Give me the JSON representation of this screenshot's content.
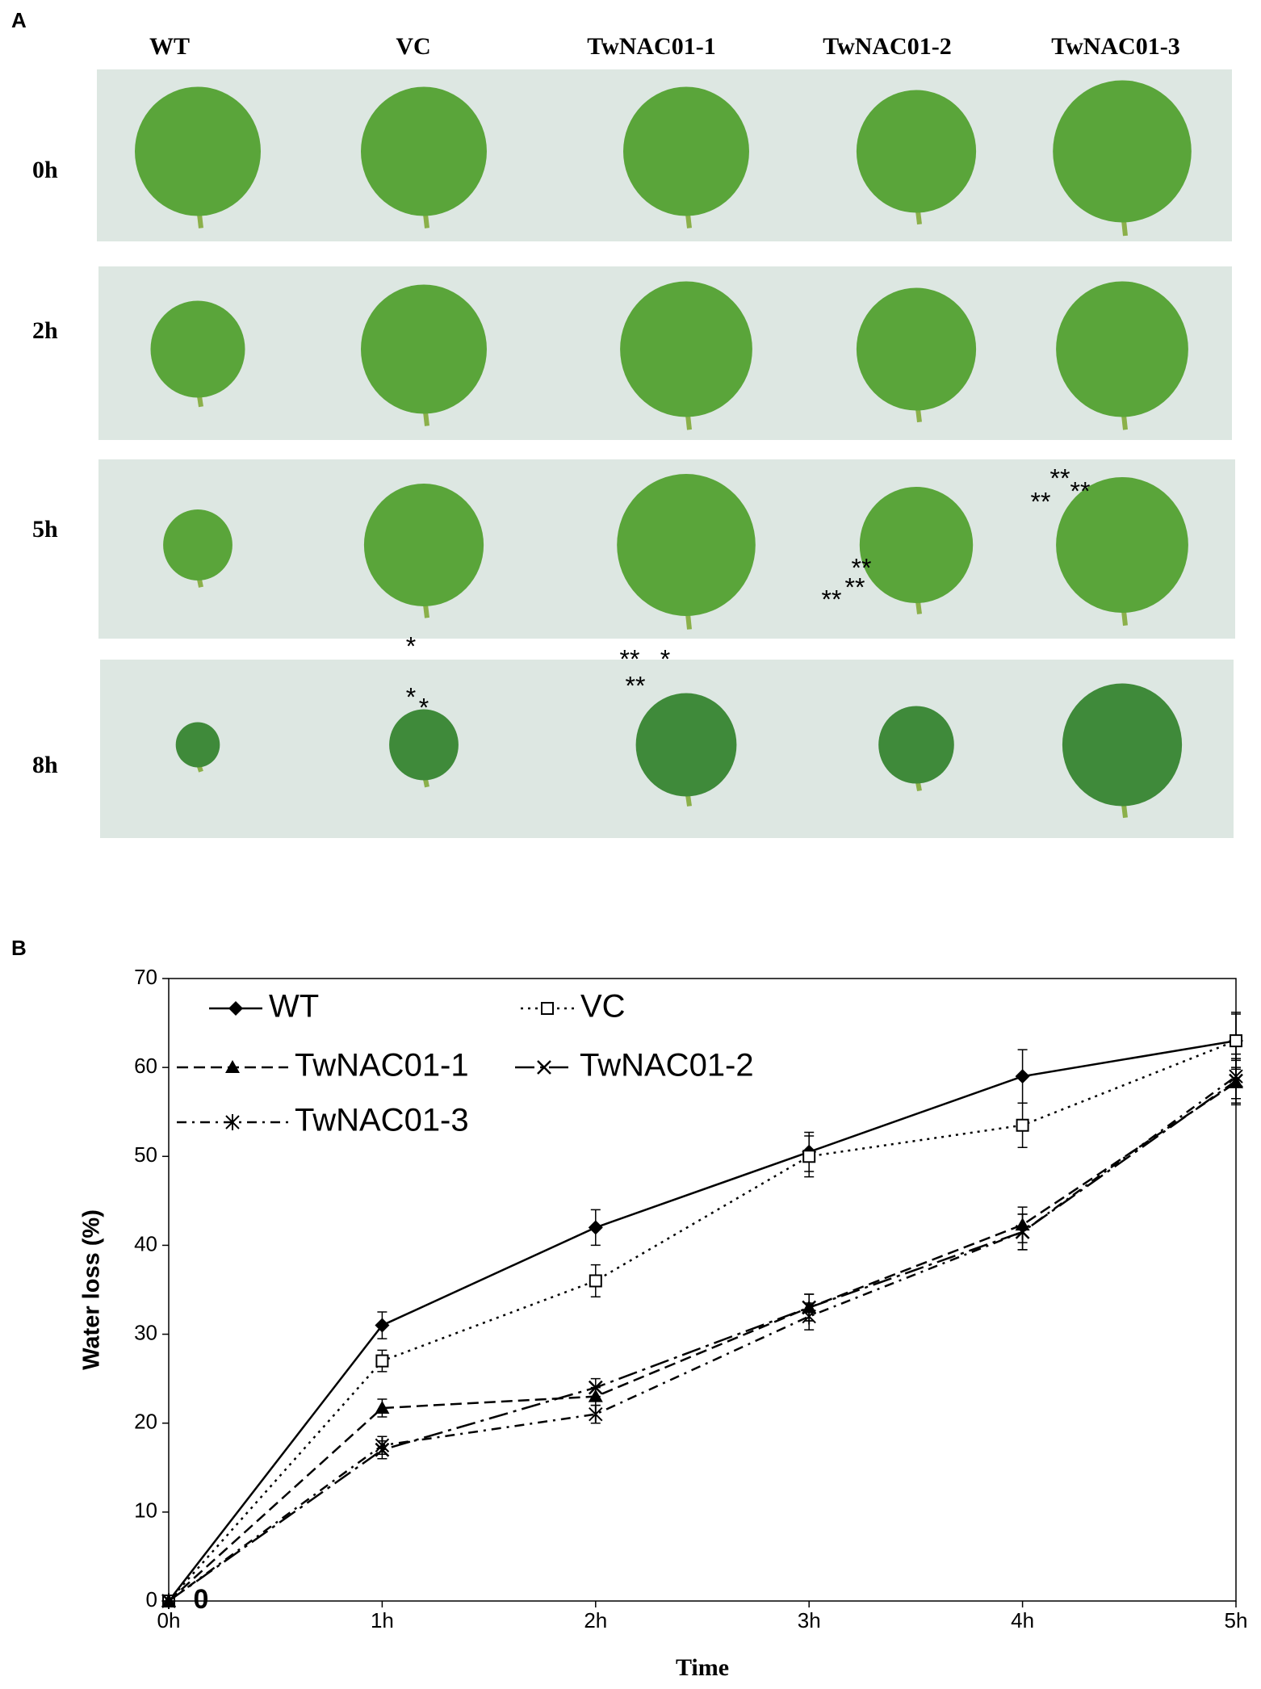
{
  "panel_a": {
    "label": "A",
    "columns": [
      "WT",
      "VC",
      "TwNAC01-1",
      "TwNAC01-2",
      "TwNAC01-3"
    ],
    "rows": [
      "0h",
      "2h",
      "5h",
      "8h"
    ]
  },
  "panel_b": {
    "label": "B"
  },
  "chart_data": {
    "type": "line",
    "xlabel": "Time",
    "ylabel": "Water loss (%)",
    "categories": [
      "0h",
      "1h",
      "2h",
      "3h",
      "4h",
      "5h"
    ],
    "ylim": [
      0,
      70
    ],
    "yticks": [
      0,
      10,
      20,
      30,
      40,
      50,
      60,
      70
    ],
    "legend": "upper left",
    "series": [
      {
        "name": "WT",
        "color": "#000000",
        "line_style": "solid",
        "marker": "diamond",
        "values": [
          0,
          31,
          42,
          50.5,
          59,
          63
        ],
        "errors": [
          0,
          1.5,
          2,
          2.2,
          3,
          3.2
        ]
      },
      {
        "name": "VC",
        "color": "#000000",
        "line_style": "dotted",
        "marker": "open-square",
        "values": [
          0,
          27,
          36,
          50,
          53.5,
          63
        ],
        "errors": [
          0,
          1.2,
          1.8,
          2.3,
          2.5,
          3
        ]
      },
      {
        "name": "TwNAC01-1",
        "color": "#000000",
        "line_style": "dashed",
        "marker": "triangle",
        "values": [
          0,
          21.7,
          23,
          33,
          42.3,
          58.3
        ],
        "errors": [
          0,
          1,
          1,
          1.5,
          2,
          2.5
        ]
      },
      {
        "name": "TwNAC01-2",
        "color": "#000000",
        "line_style": "long-dash-dot",
        "marker": "x",
        "values": [
          0,
          17,
          24,
          33,
          41.5,
          58.5
        ],
        "errors": [
          0,
          1,
          1,
          1.5,
          2,
          2.5
        ]
      },
      {
        "name": "TwNAC01-3",
        "color": "#000000",
        "line_style": "dash-dot",
        "marker": "asterisk",
        "values": [
          0,
          17.5,
          21,
          32,
          41.5,
          59
        ],
        "errors": [
          0,
          1,
          1,
          1.5,
          2,
          2.5
        ]
      }
    ],
    "annotations": [
      "*",
      "*",
      "*",
      "**",
      "*",
      "**",
      "**",
      "**",
      "**",
      "**",
      "**",
      "**",
      "0"
    ]
  }
}
